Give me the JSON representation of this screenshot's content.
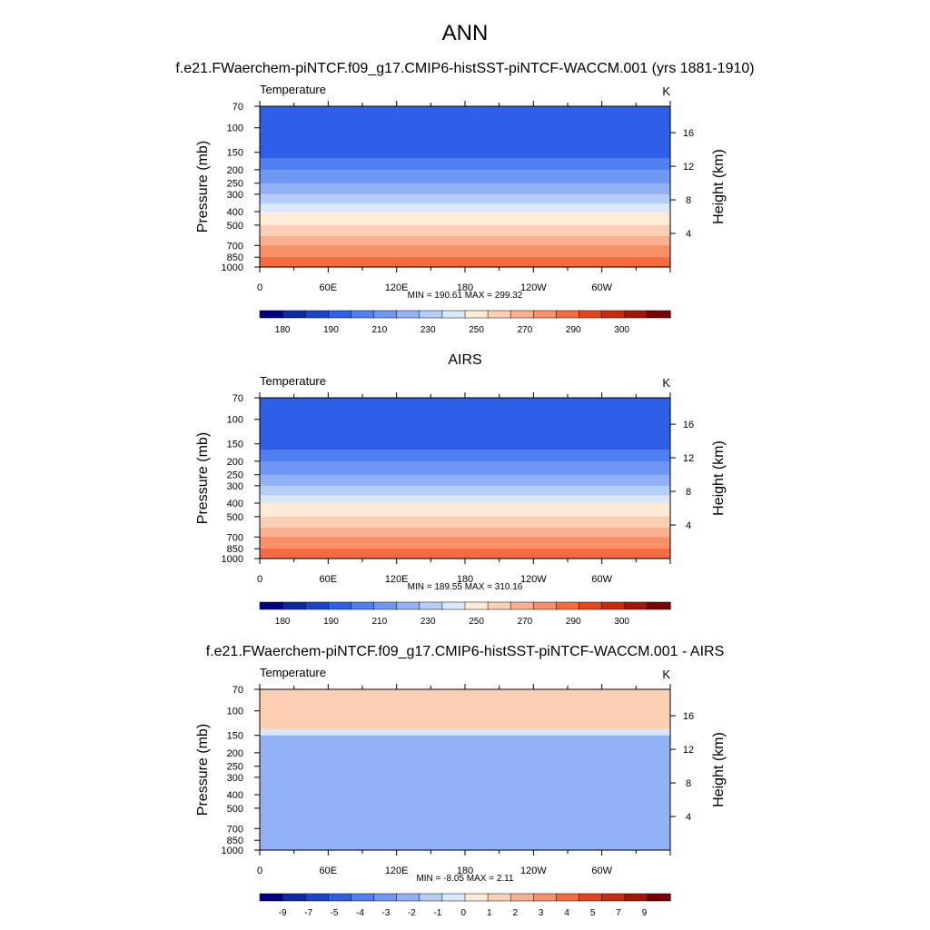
{
  "figure": {
    "title": "ANN",
    "panel1_title": "f.e21.FWaerchem-piNTCF.f09_g17.CMIP6-histSST-piNTCF-WACCM.001 (yrs 1881-1910)",
    "panel2_title": "AIRS",
    "panel3_title": "f.e21.FWaerchem-piNTCF.f09_g17.CMIP6-histSST-piNTCF-WACCM.001 - AIRS"
  },
  "chart_data": [
    {
      "type": "heatmap",
      "title": "f.e21.FWaerchem-piNTCF.f09_g17.CMIP6-histSST-piNTCF-WACCM.001 (yrs 1881-1910)",
      "variable_label": "Temperature",
      "units": "K",
      "ylabel": "Pressure (mb)",
      "ylabel_right": "Height (km)",
      "x_ticks": [
        "0",
        "60E",
        "120E",
        "180",
        "120W",
        "60W"
      ],
      "y_ticks": [
        "70",
        "100",
        "150",
        "200",
        "250",
        "300",
        "400",
        "500",
        "700",
        "850",
        "1000"
      ],
      "y_ticks_right": [
        "16",
        "12",
        "8",
        "4"
      ],
      "min_max_label": "MIN = 190.61  MAX = 299.32",
      "colorbar_labels": [
        "180",
        "190",
        "210",
        "230",
        "250",
        "270",
        "290",
        "300"
      ],
      "colorbar_colors": [
        "#000080",
        "#0b2ba5",
        "#1c44c9",
        "#2e5fe8",
        "#4f7ff0",
        "#6f98f4",
        "#93b2f6",
        "#b6cdf8",
        "#d8e7fb",
        "#fdebd7",
        "#fccfb4",
        "#fab08e",
        "#f8906a",
        "#f56a3f",
        "#e4451c",
        "#c62c10",
        "#a11809",
        "#760404"
      ],
      "profile": [
        {
          "p": 70,
          "c": 3
        },
        {
          "p": 150,
          "c": 3
        },
        {
          "p": 165,
          "c": 4
        },
        {
          "p": 200,
          "c": 5
        },
        {
          "p": 250,
          "c": 6
        },
        {
          "p": 300,
          "c": 7
        },
        {
          "p": 350,
          "c": 8
        },
        {
          "p": 400,
          "c": 9
        },
        {
          "p": 500,
          "c": 10
        },
        {
          "p": 600,
          "c": 11
        },
        {
          "p": 700,
          "c": 12
        },
        {
          "p": 850,
          "c": 13
        },
        {
          "p": 1000,
          "c": 14
        }
      ]
    },
    {
      "type": "heatmap",
      "title": "AIRS",
      "variable_label": "Temperature",
      "units": "K",
      "ylabel": "Pressure (mb)",
      "ylabel_right": "Height (km)",
      "x_ticks": [
        "0",
        "60E",
        "120E",
        "180",
        "120W",
        "60W"
      ],
      "y_ticks": [
        "70",
        "100",
        "150",
        "200",
        "250",
        "300",
        "400",
        "500",
        "700",
        "850",
        "1000"
      ],
      "y_ticks_right": [
        "16",
        "12",
        "8",
        "4"
      ],
      "min_max_label": "MIN = 189.55  MAX = 310.16",
      "colorbar_labels": [
        "180",
        "190",
        "210",
        "230",
        "250",
        "270",
        "290",
        "300"
      ],
      "colorbar_colors": [
        "#000080",
        "#0b2ba5",
        "#1c44c9",
        "#2e5fe8",
        "#4f7ff0",
        "#6f98f4",
        "#93b2f6",
        "#b6cdf8",
        "#d8e7fb",
        "#fdebd7",
        "#fccfb4",
        "#fab08e",
        "#f8906a",
        "#f56a3f",
        "#e4451c",
        "#c62c10",
        "#a11809",
        "#760404"
      ],
      "profile": [
        {
          "p": 70,
          "c": 3
        },
        {
          "p": 150,
          "c": 3
        },
        {
          "p": 165,
          "c": 4
        },
        {
          "p": 200,
          "c": 5
        },
        {
          "p": 250,
          "c": 6
        },
        {
          "p": 300,
          "c": 7
        },
        {
          "p": 350,
          "c": 8
        },
        {
          "p": 400,
          "c": 9
        },
        {
          "p": 500,
          "c": 10
        },
        {
          "p": 600,
          "c": 11
        },
        {
          "p": 700,
          "c": 12
        },
        {
          "p": 850,
          "c": 13
        },
        {
          "p": 1000,
          "c": 14
        }
      ]
    },
    {
      "type": "heatmap",
      "title": "f.e21.FWaerchem-piNTCF.f09_g17.CMIP6-histSST-piNTCF-WACCM.001 - AIRS",
      "variable_label": "Temperature",
      "units": "K",
      "ylabel": "Pressure (mb)",
      "ylabel_right": "Height (km)",
      "x_ticks": [
        "0",
        "60E",
        "120E",
        "180",
        "120W",
        "60W"
      ],
      "y_ticks": [
        "70",
        "100",
        "150",
        "200",
        "250",
        "300",
        "400",
        "500",
        "700",
        "850",
        "1000"
      ],
      "y_ticks_right": [
        "16",
        "12",
        "8",
        "4"
      ],
      "min_max_label": "MIN =  -8.05  MAX =   2.11",
      "colorbar_labels": [
        "-9",
        "-7",
        "-5",
        "-4",
        "-3",
        "-2",
        "-1",
        "0",
        "1",
        "2",
        "3",
        "4",
        "5",
        "7",
        "9"
      ],
      "colorbar_colors": [
        "#000080",
        "#0b2ba5",
        "#1c44c9",
        "#2e5fe8",
        "#4f7ff0",
        "#6f98f4",
        "#93b2f6",
        "#b6cdf8",
        "#d8e7fb",
        "#fdebd7",
        "#fccfb4",
        "#fab08e",
        "#f8906a",
        "#f56a3f",
        "#e4451c",
        "#c62c10",
        "#a11809",
        "#760404"
      ],
      "profile": [
        {
          "p": 70,
          "c": 10
        },
        {
          "p": 120,
          "c": 10
        },
        {
          "p": 135,
          "c": 8
        },
        {
          "p": 150,
          "c": 6
        },
        {
          "p": 1000,
          "c": 6
        }
      ]
    }
  ]
}
